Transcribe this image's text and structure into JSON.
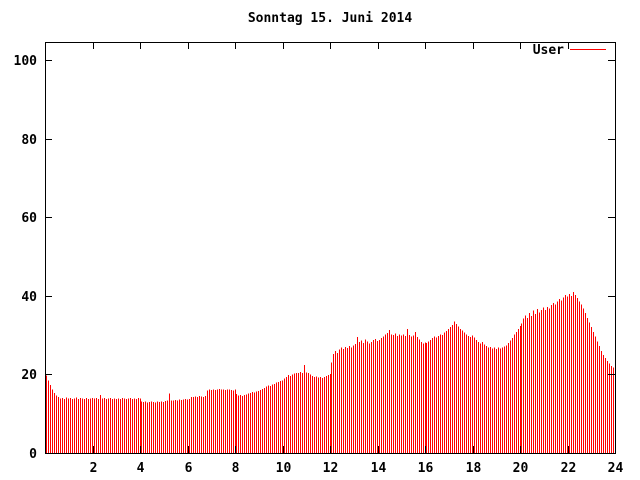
{
  "title": "Sonntag 15. Juni 2014",
  "legend": {
    "label": "User",
    "color": "#ff0000"
  },
  "colors": {
    "background": "#ffffff",
    "axis": "#000000",
    "bars": "#ff0000",
    "text": "#000000"
  },
  "chart_data": {
    "type": "bar",
    "style": "impulses",
    "title": "Sonntag 15. Juni 2014",
    "series_name": "User",
    "color": "#ff0000",
    "x_unit": "hour_of_day",
    "sample_interval_minutes": 5,
    "xlim": [
      0,
      24
    ],
    "ylim": [
      0,
      105
    ],
    "x_ticks": [
      2,
      4,
      6,
      8,
      10,
      12,
      14,
      16,
      18,
      20,
      22,
      24
    ],
    "y_ticks": [
      0,
      20,
      40,
      60,
      80,
      100
    ],
    "grid": false,
    "legend_position": "top-right-inside",
    "values": [
      19.7,
      18.4,
      17.3,
      16.2,
      15.3,
      14.6,
      14.2,
      13.9,
      14.0,
      13.8,
      14.1,
      13.9,
      14.0,
      13.8,
      13.9,
      14.1,
      13.8,
      14.0,
      13.9,
      13.7,
      14.0,
      13.8,
      13.9,
      14.0,
      13.9,
      14.0,
      13.8,
      14.8,
      13.9,
      14.0,
      13.8,
      13.9,
      14.0,
      13.8,
      13.9,
      13.8,
      13.9,
      13.8,
      14.0,
      13.9,
      13.8,
      13.9,
      14.0,
      13.8,
      13.9,
      13.8,
      14.0,
      13.9,
      13.1,
      13.0,
      13.1,
      12.9,
      13.0,
      13.1,
      13.0,
      12.9,
      13.1,
      13.0,
      13.1,
      13.0,
      13.2,
      13.3,
      15.2,
      13.4,
      13.3,
      13.5,
      13.4,
      13.6,
      13.5,
      13.6,
      13.7,
      13.6,
      13.8,
      14.3,
      14.2,
      14.4,
      14.3,
      14.5,
      14.4,
      14.3,
      14.5,
      15.9,
      16.1,
      16.0,
      16.2,
      16.0,
      16.1,
      16.3,
      16.1,
      16.2,
      16.0,
      16.1,
      16.2,
      16.0,
      15.9,
      16.1,
      15.0,
      14.6,
      14.8,
      14.5,
      14.7,
      14.9,
      15.1,
      15.3,
      15.5,
      15.4,
      15.6,
      15.8,
      16.0,
      16.3,
      16.6,
      16.9,
      17.2,
      17.0,
      17.4,
      17.6,
      17.9,
      18.1,
      18.3,
      18.5,
      19.0,
      19.4,
      19.8,
      19.6,
      20.0,
      20.2,
      20.4,
      20.3,
      20.6,
      20.4,
      22.4,
      20.5,
      20.3,
      20.0,
      19.6,
      19.3,
      19.5,
      19.2,
      19.4,
      19.1,
      19.3,
      19.6,
      19.8,
      20.1,
      23.0,
      25.2,
      26.0,
      25.5,
      26.3,
      26.8,
      26.5,
      27.0,
      26.7,
      27.2,
      26.9,
      27.4,
      27.8,
      29.5,
      28.2,
      28.6,
      28.0,
      28.9,
      28.4,
      27.9,
      28.3,
      28.7,
      29.0,
      28.5,
      28.8,
      29.2,
      29.6,
      30.1,
      30.5,
      31.3,
      30.2,
      30.0,
      30.4,
      29.8,
      30.2,
      29.9,
      30.1,
      29.8,
      31.5,
      30.0,
      29.7,
      29.9,
      30.8,
      29.5,
      28.9,
      28.3,
      27.9,
      28.1,
      28.0,
      28.4,
      28.8,
      29.3,
      29.7,
      29.4,
      29.8,
      30.2,
      30.0,
      30.6,
      31.0,
      31.5,
      32.0,
      32.6,
      33.4,
      32.8,
      32.2,
      31.6,
      31.2,
      30.6,
      30.2,
      29.8,
      29.5,
      29.9,
      29.4,
      28.8,
      28.3,
      27.9,
      28.2,
      27.6,
      27.2,
      26.8,
      27.0,
      26.6,
      26.9,
      26.5,
      26.8,
      26.6,
      26.9,
      27.1,
      27.4,
      28.0,
      28.6,
      29.3,
      30.1,
      30.8,
      31.5,
      32.3,
      33.0,
      34.2,
      35.0,
      34.4,
      35.6,
      34.8,
      36.2,
      35.4,
      36.6,
      35.8,
      36.4,
      37.0,
      36.4,
      37.2,
      36.8,
      37.6,
      38.2,
      37.8,
      38.6,
      39.2,
      38.8,
      39.6,
      40.2,
      39.8,
      40.4,
      39.9,
      41.0,
      40.2,
      39.4,
      38.6,
      37.8,
      36.8,
      35.6,
      34.4,
      33.2,
      32.0,
      30.8,
      29.6,
      28.4,
      27.2,
      26.0,
      25.0,
      24.2,
      23.4,
      22.8,
      22.2,
      21.8,
      21.4
    ]
  }
}
